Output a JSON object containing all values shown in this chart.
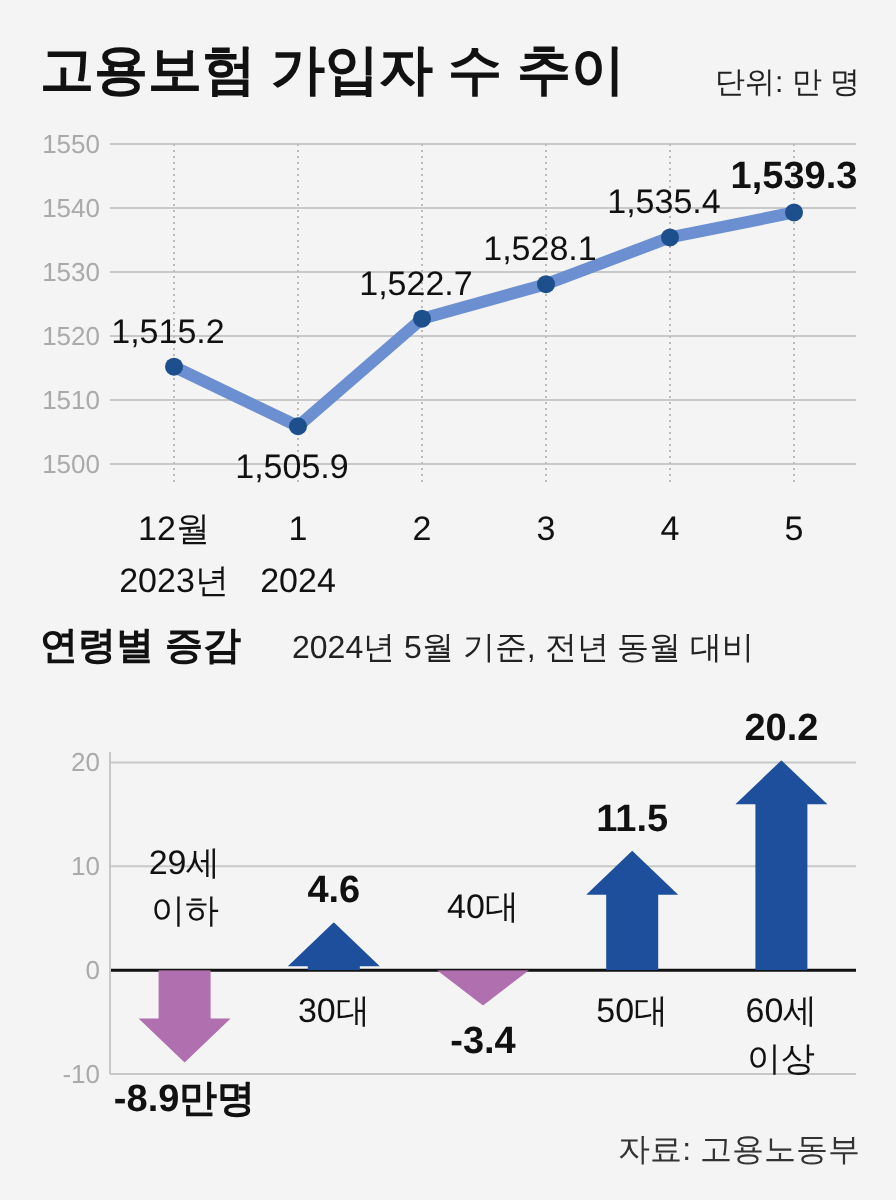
{
  "chart_data": [
    {
      "type": "line",
      "title": "고용보험 가입자 수 추이",
      "annotations": [
        "단위: 만 명"
      ],
      "categories": [
        "12월\n2023년",
        "1\n2024",
        "2",
        "3",
        "4",
        "5"
      ],
      "series": [
        {
          "color": "#6b8fd0",
          "values": [
            1515.2,
            1505.9,
            1522.7,
            1528.1,
            1535.4,
            1539.3
          ],
          "value_labels": [
            "1,515.2",
            "1,505.9",
            "1,522.7",
            "1,528.1",
            "1,535.4",
            "1,539.3"
          ]
        }
      ],
      "ylim": [
        1500,
        1550
      ],
      "yticks": [
        1500,
        1510,
        1520,
        1530,
        1540,
        1550
      ],
      "grid": true,
      "marker": "circle",
      "line_style": "solid"
    },
    {
      "type": "bar",
      "title": "연령별 증감",
      "subtitle": "2024년 5월 기준, 전년 동월 대비",
      "annotations": [
        "자료: 고용노동부"
      ],
      "categories": [
        "29세\n이하",
        "30대",
        "40대",
        "50대",
        "60세\n이상"
      ],
      "values": [
        -8.9,
        4.6,
        -3.4,
        11.5,
        20.2
      ],
      "colors": [
        "#b06fae",
        "#1d4f9c",
        "#b06fae",
        "#1d4f9c",
        "#1d4f9c"
      ],
      "value_labels": [
        "-8.9만명",
        "4.6",
        "-3.4",
        "11.5",
        "20.2"
      ],
      "ylim": [
        -10,
        21
      ],
      "yticks": [
        -10,
        0,
        10,
        20
      ],
      "grid": "y"
    }
  ]
}
